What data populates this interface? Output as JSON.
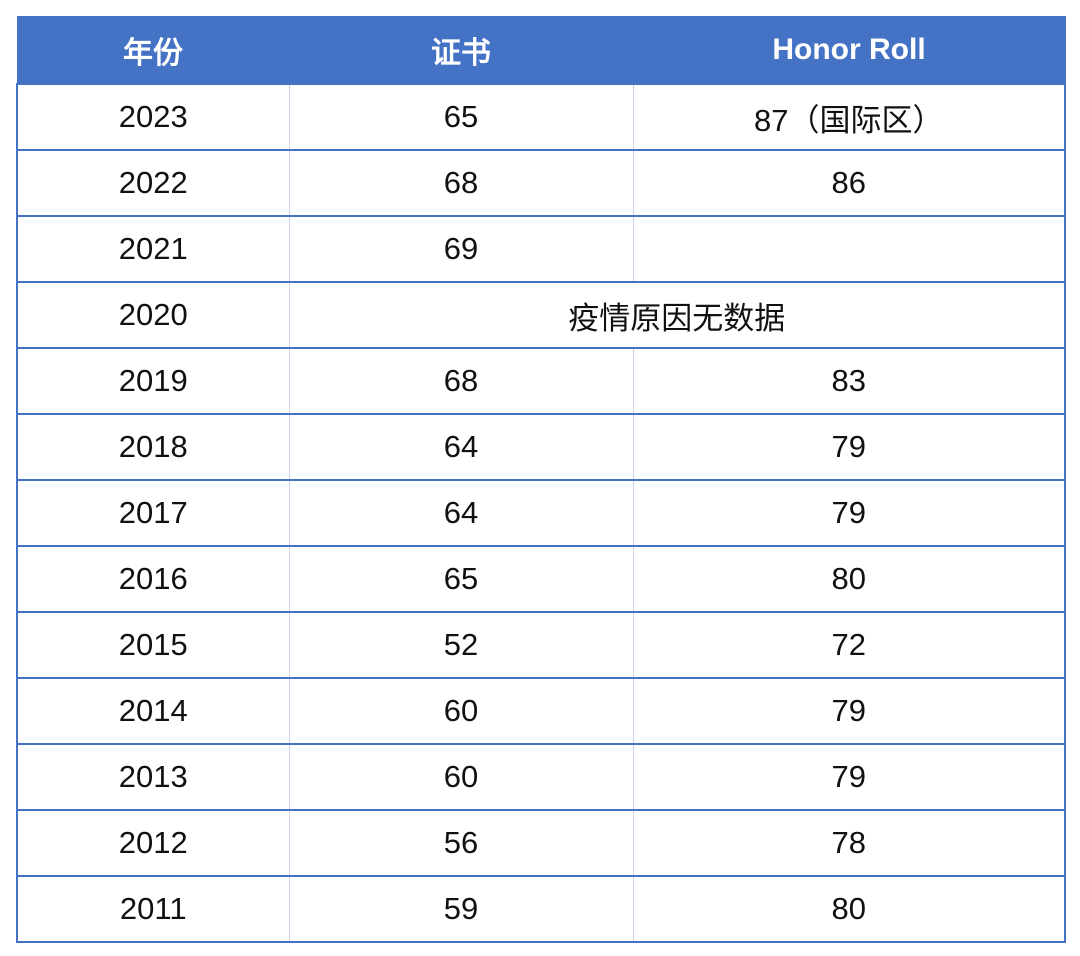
{
  "table": {
    "headers": [
      "年份",
      "证书",
      "Honor Roll"
    ],
    "rows": [
      {
        "year": "2023",
        "cert": "65",
        "honor": "87（国际区）"
      },
      {
        "year": "2022",
        "cert": "68",
        "honor": "86"
      },
      {
        "year": "2021",
        "cert": "69",
        "honor": ""
      },
      {
        "year": "2020",
        "merged_note": "疫情原因无数据"
      },
      {
        "year": "2019",
        "cert": "68",
        "honor": "83"
      },
      {
        "year": "2018",
        "cert": "64",
        "honor": "79"
      },
      {
        "year": "2017",
        "cert": "64",
        "honor": "79"
      },
      {
        "year": "2016",
        "cert": "65",
        "honor": "80"
      },
      {
        "year": "2015",
        "cert": "52",
        "honor": "72"
      },
      {
        "year": "2014",
        "cert": "60",
        "honor": "79"
      },
      {
        "year": "2013",
        "cert": "60",
        "honor": "79"
      },
      {
        "year": "2012",
        "cert": "56",
        "honor": "78"
      },
      {
        "year": "2011",
        "cert": "59",
        "honor": "80"
      }
    ]
  },
  "colors": {
    "header_bg": "#4472c4",
    "header_text": "#ffffff",
    "border": "#4472c4"
  }
}
